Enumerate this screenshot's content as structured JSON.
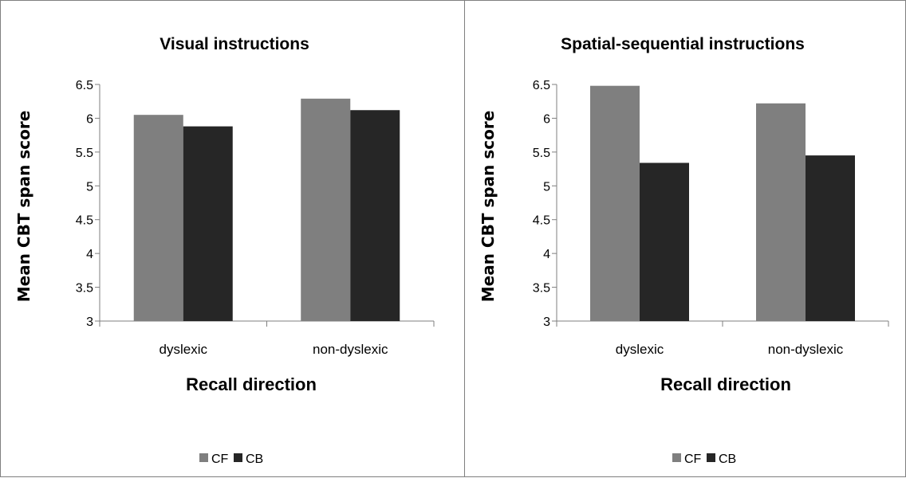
{
  "chart_data": [
    {
      "type": "bar",
      "title": "Visual instructions",
      "xlabel": "Recall direction",
      "ylabel": "Mean CBT span score",
      "categories": [
        "dyslexic",
        "non-dyslexic"
      ],
      "ylim": [
        3,
        6.5
      ],
      "yticks": [
        "3",
        "3.5",
        "4",
        "4.5",
        "5",
        "5.5",
        "6",
        "6.5"
      ],
      "series": [
        {
          "name": "CF",
          "color": "#7f7f7f",
          "values": [
            6.05,
            6.29
          ]
        },
        {
          "name": "CB",
          "color": "#262626",
          "values": [
            5.88,
            6.12
          ]
        }
      ],
      "legend": "bottom",
      "grid": false
    },
    {
      "type": "bar",
      "title": "Spatial-sequential instructions",
      "xlabel": "Recall direction",
      "ylabel": "Mean CBT span score",
      "categories": [
        "dyslexic",
        "non-dyslexic"
      ],
      "ylim": [
        3,
        6.5
      ],
      "yticks": [
        "3",
        "3.5",
        "4",
        "4.5",
        "5",
        "5.5",
        "6",
        "6.5"
      ],
      "series": [
        {
          "name": "CF",
          "color": "#7f7f7f",
          "values": [
            6.48,
            6.22
          ]
        },
        {
          "name": "CB",
          "color": "#262626",
          "values": [
            5.34,
            5.45
          ]
        }
      ],
      "legend": "bottom",
      "grid": false
    }
  ]
}
